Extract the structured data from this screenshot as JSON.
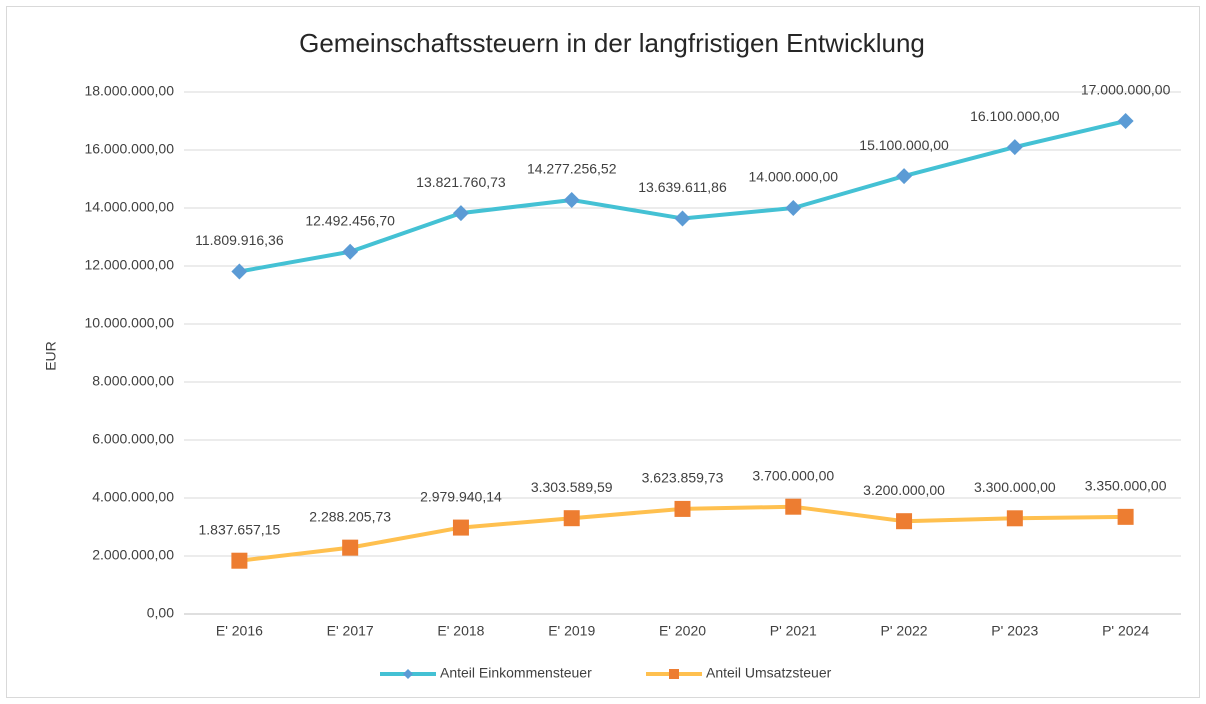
{
  "chart_data": {
    "type": "line",
    "title": "Gemeinschaftssteuern in der langfristigen Entwicklung",
    "y_label": "EUR",
    "categories": [
      "E' 2016",
      "E' 2017",
      "E' 2018",
      "E' 2019",
      "E' 2020",
      "P' 2021",
      "P' 2022",
      "P' 2023",
      "P' 2024"
    ],
    "series": [
      {
        "name": "Anteil Einkommensteuer",
        "color": "#44c1d4",
        "marker_color": "#5b9bd5",
        "marker": "diamond",
        "values": [
          11809916.36,
          12492456.7,
          13821760.73,
          14277256.52,
          13639611.86,
          14000000.0,
          15100000.0,
          16100000.0,
          17000000.0
        ],
        "value_labels": [
          "11.809.916,36",
          "12.492.456,70",
          "13.821.760,73",
          "14.277.256,52",
          "13.639.611,86",
          "14.000.000,00",
          "15.100.000,00",
          "16.100.000,00",
          "17.000.000,00"
        ]
      },
      {
        "name": "Anteil Umsatzsteuer",
        "color": "#ffc04f",
        "marker_color": "#ed7d31",
        "marker": "square",
        "values": [
          1837657.15,
          2288205.73,
          2979940.14,
          3303589.59,
          3623859.73,
          3700000.0,
          3200000.0,
          3300000.0,
          3350000.0
        ],
        "value_labels": [
          "1.837.657,15",
          "2.288.205,73",
          "2.979.940,14",
          "3.303.589,59",
          "3.623.859,73",
          "3.700.000,00",
          "3.200.000,00",
          "3.300.000,00",
          "3.350.000,00"
        ]
      }
    ],
    "ylim": [
      0,
      18000000
    ],
    "yticks": [
      {
        "value": 0,
        "label": "0,00"
      },
      {
        "value": 2000000,
        "label": "2.000.000,00"
      },
      {
        "value": 4000000,
        "label": "4.000.000,00"
      },
      {
        "value": 6000000,
        "label": "6.000.000,00"
      },
      {
        "value": 8000000,
        "label": "8.000.000,00"
      },
      {
        "value": 10000000,
        "label": "10.000.000,00"
      },
      {
        "value": 12000000,
        "label": "12.000.000,00"
      },
      {
        "value": 14000000,
        "label": "14.000.000,00"
      },
      {
        "value": 16000000,
        "label": "16.000.000,00"
      },
      {
        "value": 18000000,
        "label": "18.000.000,00"
      }
    ],
    "grid": true,
    "legend": "bottom"
  }
}
